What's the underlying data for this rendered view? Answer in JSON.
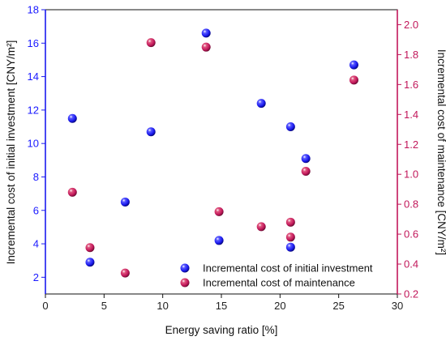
{
  "chart_data": {
    "type": "scatter",
    "xlabel": "Energy saving ratio [%]",
    "ylabel_left": "Incremental cost of initial investment [CNY/m²]",
    "ylabel_right": "Incremental cost of maintenance [CNY/m²]",
    "xlim": [
      0,
      30
    ],
    "ylim_left": [
      1,
      18
    ],
    "ylim_right": [
      0.2,
      2.1
    ],
    "x_ticks": [
      "0",
      "5",
      "10",
      "15",
      "20",
      "25",
      "30"
    ],
    "y_left_ticks": [
      "2",
      "4",
      "6",
      "8",
      "10",
      "12",
      "14",
      "16",
      "18"
    ],
    "y_right_ticks": [
      "0.2",
      "0.4",
      "0.6",
      "0.8",
      "1.0",
      "1.2",
      "1.4",
      "1.6",
      "1.8",
      "2.0"
    ],
    "grid": false,
    "legend_position": "bottom-right",
    "series": [
      {
        "name": "Incremental cost of initial investment",
        "axis": "left",
        "color": "#1a1aee",
        "points": [
          {
            "x": 2.3,
            "y": 11.5
          },
          {
            "x": 3.8,
            "y": 2.9
          },
          {
            "x": 6.8,
            "y": 6.5
          },
          {
            "x": 9.0,
            "y": 10.7
          },
          {
            "x": 13.7,
            "y": 16.6
          },
          {
            "x": 14.8,
            "y": 4.2
          },
          {
            "x": 18.4,
            "y": 12.4
          },
          {
            "x": 20.9,
            "y": 11.0
          },
          {
            "x": 20.9,
            "y": 3.8
          },
          {
            "x": 22.2,
            "y": 9.1
          },
          {
            "x": 26.3,
            "y": 14.7
          }
        ]
      },
      {
        "name": "Incremental cost of maintenance",
        "axis": "right",
        "color": "#c2185b",
        "points": [
          {
            "x": 2.3,
            "y": 0.88
          },
          {
            "x": 3.8,
            "y": 0.51
          },
          {
            "x": 6.8,
            "y": 0.34
          },
          {
            "x": 9.0,
            "y": 1.88
          },
          {
            "x": 13.7,
            "y": 1.85
          },
          {
            "x": 14.8,
            "y": 0.75
          },
          {
            "x": 18.4,
            "y": 0.65
          },
          {
            "x": 20.9,
            "y": 0.68
          },
          {
            "x": 20.9,
            "y": 0.58
          },
          {
            "x": 22.2,
            "y": 1.02
          },
          {
            "x": 26.3,
            "y": 1.63
          }
        ]
      }
    ]
  }
}
